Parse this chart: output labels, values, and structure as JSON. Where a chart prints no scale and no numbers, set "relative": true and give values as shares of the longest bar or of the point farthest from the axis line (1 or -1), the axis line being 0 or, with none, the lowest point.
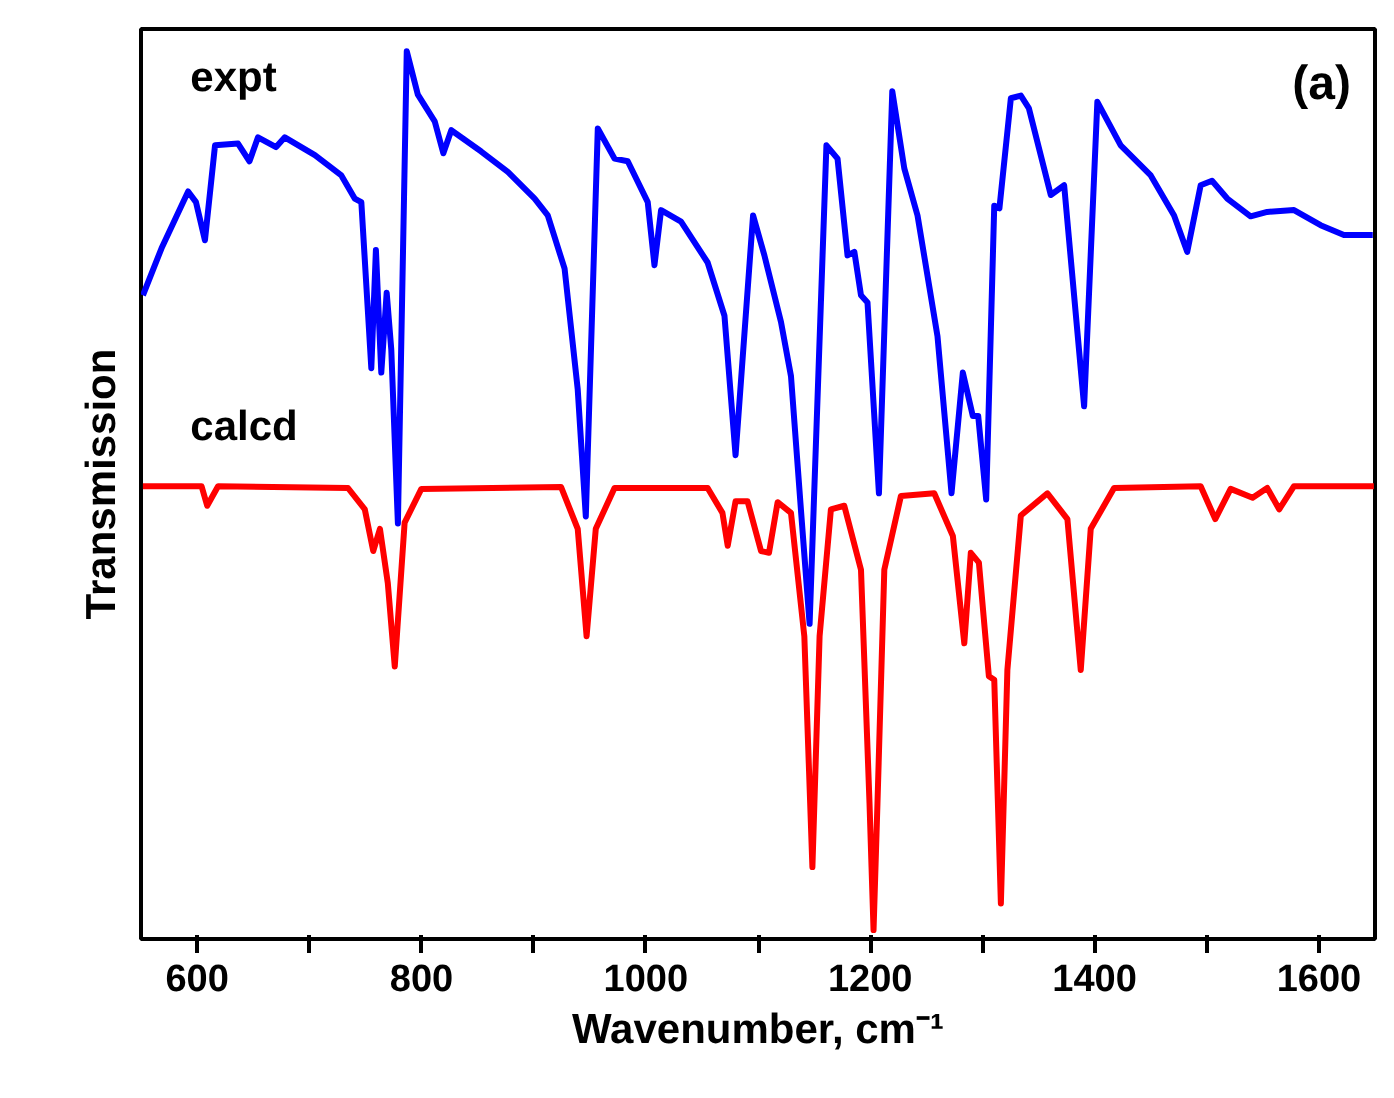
{
  "chart_data": {
    "type": "line",
    "relative": true,
    "xlabel": "Wavenumber, cm⁻¹",
    "ylabel": "Transmission",
    "annotations": [
      "(a)"
    ],
    "xlim": [
      550,
      1650
    ],
    "xticks": [
      600,
      {
        "value": 700,
        "label": null
      },
      800,
      {
        "value": 900,
        "label": null
      },
      1000,
      {
        "value": 1100,
        "label": null
      },
      1200,
      {
        "value": 1300,
        "label": null
      },
      1400,
      {
        "value": 1500,
        "label": null
      },
      1600
    ],
    "grid": false,
    "marker": "none",
    "line_style": "solid",
    "series": [
      {
        "name": "expt",
        "color": "#0000ff",
        "x": [
          551.7,
          568.3,
          592,
          599,
          607,
          616,
          636.5,
          646.7,
          654.3,
          670.4,
          678.2,
          705,
          728.6,
          740.5,
          746.4,
          755.3,
          759.4,
          764.2,
          769,
          773.1,
          779,
          786.9,
          796.8,
          811.8,
          819.5,
          826.6,
          853.3,
          877,
          900.9,
          912.6,
          927.6,
          939.3,
          946.5,
          957.2,
          972.1,
          983.9,
          1001.7,
          1007.7,
          1013.6,
          1031.4,
          1055.1,
          1070.1,
          1080,
          1095.6,
          1105.7,
          1120.5,
          1129.4,
          1138.3,
          1146,
          1161,
          1170.9,
          1179.8,
          1185.9,
          1191.8,
          1197.6,
          1207.8,
          1219.7,
          1230.4,
          1242.2,
          1260,
          1272.5,
          1282.6,
          1291.5,
          1296.3,
          1303.4,
          1310.6,
          1315.2,
          1325.4,
          1334.3,
          1341.4,
          1361,
          1372.9,
          1390.7,
          1402.5,
          1423.3,
          1450.1,
          1470.9,
          1482.6,
          1494.6,
          1504.7,
          1518.3,
          1539.1,
          1553.9,
          1577.8,
          1601.5,
          1622.3,
          1648
        ],
        "values": [
          0.725,
          0.778,
          0.842,
          0.83,
          0.787,
          0.894,
          0.896,
          0.876,
          0.903,
          0.892,
          0.903,
          0.883,
          0.86,
          0.834,
          0.83,
          0.643,
          0.776,
          0.638,
          0.728,
          0.664,
          0.468,
          1.0,
          0.951,
          0.921,
          0.885,
          0.911,
          0.887,
          0.864,
          0.834,
          0.815,
          0.755,
          0.619,
          0.476,
          0.913,
          0.879,
          0.876,
          0.83,
          0.759,
          0.821,
          0.808,
          0.762,
          0.702,
          0.545,
          0.815,
          0.77,
          0.695,
          0.634,
          0.483,
          0.355,
          0.894,
          0.879,
          0.77,
          0.774,
          0.725,
          0.717,
          0.502,
          0.955,
          0.868,
          0.815,
          0.679,
          0.502,
          0.638,
          0.589,
          0.589,
          0.495,
          0.826,
          0.823,
          0.947,
          0.95,
          0.936,
          0.838,
          0.849,
          0.6,
          0.943,
          0.894,
          0.86,
          0.815,
          0.774,
          0.849,
          0.854,
          0.834,
          0.814,
          0.819,
          0.821,
          0.804,
          0.793,
          0.793
        ]
      },
      {
        "name": "calcd",
        "color": "#ff0000",
        "x": [
          551.7,
          604,
          609,
          618.7,
          734.5,
          749.5,
          757,
          763,
          770,
          776.2,
          785,
          799.9,
          924.5,
          939.3,
          947.2,
          955.4,
          972.1,
          1055.1,
          1068.3,
          1073,
          1080,
          1090.7,
          1102.7,
          1109.8,
          1117.5,
          1129.4,
          1141.3,
          1148.5,
          1154.9,
          1165,
          1176.9,
          1191.8,
          1199.4,
          1203,
          1206.5,
          1212.6,
          1227.4,
          1257.1,
          1273.7,
          1283.9,
          1289.7,
          1296.9,
          1305.8,
          1310.6,
          1316.5,
          1322.3,
          1334.3,
          1358,
          1375.8,
          1387.7,
          1396.6,
          1417.4,
          1494.6,
          1507.6,
          1521.3,
          1540.9,
          1553.9,
          1564.6,
          1577.8,
          1649
        ],
        "values": [
          0.51,
          0.51,
          0.488,
          0.51,
          0.508,
          0.484,
          0.437,
          0.462,
          0.401,
          0.307,
          0.469,
          0.507,
          0.509,
          0.462,
          0.341,
          0.462,
          0.508,
          0.508,
          0.48,
          0.443,
          0.493,
          0.493,
          0.437,
          0.435,
          0.492,
          0.48,
          0.341,
          0.081,
          0.341,
          0.484,
          0.488,
          0.416,
          0.153,
          0.01,
          0.153,
          0.416,
          0.499,
          0.502,
          0.454,
          0.333,
          0.435,
          0.424,
          0.296,
          0.292,
          0.04,
          0.303,
          0.477,
          0.502,
          0.473,
          0.303,
          0.462,
          0.508,
          0.51,
          0.473,
          0.507,
          0.497,
          0.508,
          0.484,
          0.51,
          0.51
        ]
      }
    ]
  }
}
